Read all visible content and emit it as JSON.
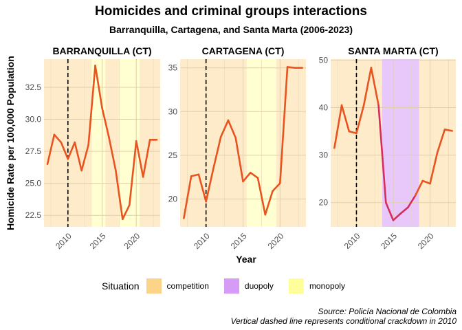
{
  "chart_data": {
    "type": "line",
    "title": "Homicides and criminal groups interactions",
    "subtitle": "Barranquilla, Cartagena, and Santa Marta (2006-2023)",
    "xlabel": "Year",
    "ylabel": "Homicide Rate per 100,000 Population",
    "vline": 2010,
    "xlim": [
      2006.5,
      2023.5
    ],
    "xticks": [
      2010,
      2015,
      2020
    ],
    "legend": {
      "title": "Situation",
      "position": "bottom",
      "entries": [
        {
          "label": "competition",
          "color": "#fdd38a"
        },
        {
          "label": "duopoly",
          "color": "#d69af7"
        },
        {
          "label": "monopoly",
          "color": "#ffff99"
        }
      ]
    },
    "captions": [
      "Source: Policía Nacional de Colombia",
      "Vertical dashed line represents conditional crackdown in 2010"
    ],
    "panels": [
      {
        "name": "BARRANQUILLA (CT)",
        "ylim": [
          21.6,
          34.7
        ],
        "yticks": [
          22.5,
          25.0,
          27.5,
          30.0,
          32.5
        ],
        "ytick_labels": [
          "22.5",
          "25.0",
          "27.5",
          "30.0",
          "32.5"
        ],
        "regimes": [
          {
            "from": 2006.5,
            "to": 2013.5,
            "situation": "competition"
          },
          {
            "from": 2013.5,
            "to": 2015.5,
            "situation": "monopoly"
          },
          {
            "from": 2015.5,
            "to": 2017.5,
            "situation": "competition"
          },
          {
            "from": 2017.5,
            "to": 2020.5,
            "situation": "monopoly"
          },
          {
            "from": 2020.5,
            "to": 2023.5,
            "situation": "competition"
          }
        ],
        "x": [
          2007,
          2008,
          2009,
          2010,
          2011,
          2012,
          2013,
          2014,
          2015,
          2016,
          2017,
          2018,
          2019,
          2020,
          2021,
          2022,
          2023
        ],
        "y": [
          26.5,
          28.8,
          28.2,
          26.9,
          28.2,
          26.0,
          28.0,
          34.2,
          30.9,
          28.6,
          26.0,
          22.2,
          23.3,
          28.3,
          25.5,
          28.4,
          28.4
        ]
      },
      {
        "name": "CARTAGENA (CT)",
        "ylim": [
          16.8,
          36.0
        ],
        "yticks": [
          20,
          25,
          30,
          35
        ],
        "ytick_labels": [
          "20",
          "25",
          "30",
          "35"
        ],
        "regimes": [
          {
            "from": 2006.5,
            "to": 2015.5,
            "situation": "competition"
          },
          {
            "from": 2015.5,
            "to": 2019.5,
            "situation": "monopoly"
          },
          {
            "from": 2019.5,
            "to": 2023.5,
            "situation": "competition"
          }
        ],
        "x": [
          2007,
          2008,
          2009,
          2010,
          2011,
          2012,
          2013,
          2014,
          2015,
          2016,
          2017,
          2018,
          2019,
          2020,
          2021,
          2022,
          2023
        ],
        "y": [
          17.8,
          22.6,
          22.8,
          19.7,
          23.5,
          27.1,
          29.0,
          27.0,
          22.0,
          23.0,
          22.4,
          18.2,
          20.9,
          21.8,
          35.1,
          35.0,
          35.0
        ]
      },
      {
        "name": "SANTA MARTA (CT)",
        "ylim": [
          14.9,
          50.2
        ],
        "yticks": [
          20,
          30,
          40,
          50
        ],
        "ytick_labels": [
          "20",
          "30",
          "40",
          "50"
        ],
        "regimes": [
          {
            "from": 2006.5,
            "to": 2013.5,
            "situation": "competition"
          },
          {
            "from": 2013.5,
            "to": 2018.5,
            "situation": "duopoly"
          },
          {
            "from": 2018.5,
            "to": 2023.5,
            "situation": "competition"
          }
        ],
        "x": [
          2007,
          2008,
          2009,
          2010,
          2011,
          2012,
          2013,
          2014,
          2015,
          2016,
          2017,
          2018,
          2019,
          2020,
          2021,
          2022,
          2023
        ],
        "y": [
          31.5,
          40.5,
          35.0,
          34.6,
          40.5,
          48.4,
          40.5,
          20.0,
          16.3,
          17.7,
          19.0,
          21.5,
          24.6,
          24.0,
          30.6,
          35.4,
          35.1
        ]
      }
    ]
  }
}
